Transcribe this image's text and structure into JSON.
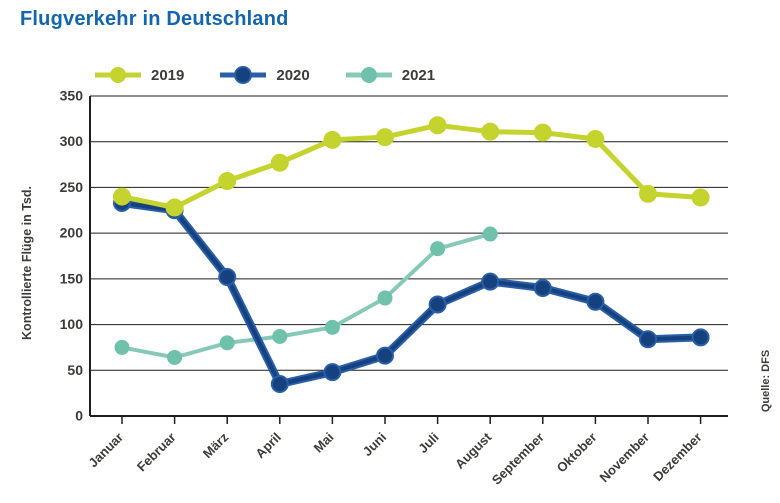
{
  "header": {
    "title": "Flugverkehr in Deutschland"
  },
  "colors": {
    "title": "#1365af",
    "text": "#3c3c3b",
    "axis": "#1f1f1f"
  },
  "chart_data": {
    "type": "line",
    "title": "Flugverkehr in Deutschland",
    "ylabel": "Kontrollierte Flüge in Tsd.",
    "xlabel": "",
    "source": "Quelle: DFS",
    "grid": true,
    "legend_position": "top",
    "ylim": [
      0,
      350
    ],
    "ytick_step": 50,
    "categories": [
      "Januar",
      "Februar",
      "März",
      "April",
      "Mai",
      "Juni",
      "Juli",
      "August",
      "September",
      "Oktober",
      "November",
      "Dezember"
    ],
    "series": [
      {
        "name": "2019",
        "color": "#c5d32e",
        "marker_color": "#c5d32e",
        "values": [
          240,
          228,
          257,
          277,
          302,
          305,
          318,
          311,
          310,
          303,
          243,
          239
        ]
      },
      {
        "name": "2020",
        "color": "#2a5fa8",
        "core_color": "#16417f",
        "marker_color": "#16417f",
        "values": [
          233,
          225,
          152,
          35,
          48,
          66,
          122,
          147,
          140,
          125,
          84,
          86
        ]
      },
      {
        "name": "2021",
        "color": "#87c9b7",
        "marker_color": "#6fc1ab",
        "values": [
          75,
          64,
          80,
          87,
          97,
          129,
          183,
          199,
          null,
          null,
          null,
          null
        ]
      }
    ]
  }
}
